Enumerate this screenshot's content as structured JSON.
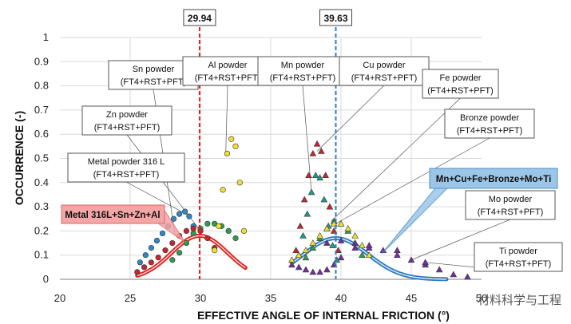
{
  "chart_data": {
    "type": "scatter",
    "xlabel": "EFFECTIVE ANGLE OF INTERNAL FRICTION (°)",
    "ylabel": "OCCURRENCE (-)",
    "xlim": [
      20,
      50
    ],
    "ylim": [
      0,
      1
    ],
    "x_ticks": [
      "20",
      "25",
      "30",
      "35",
      "40",
      "45",
      "50"
    ],
    "y_ticks": [
      "0",
      "0.1",
      "0.2",
      "0.3",
      "0.4",
      "0.5",
      "0.6",
      "0.7",
      "0.8",
      "0.9",
      "1"
    ],
    "grid": true,
    "reference_lines": [
      {
        "x": 29.94,
        "label": "29.94",
        "color": "#e0201b"
      },
      {
        "x": 39.63,
        "label": "39.63",
        "color": "#2d7cc1"
      }
    ],
    "series": [
      {
        "name": "Metal powder 316 L",
        "marker": "circle",
        "color": "#2f86c8",
        "x": [
          25.7,
          26.1,
          26.5,
          26.9,
          27.3,
          27.7,
          28.1,
          28.5,
          28.9,
          29.2,
          29.5
        ],
        "y": [
          0.07,
          0.1,
          0.13,
          0.16,
          0.19,
          0.22,
          0.25,
          0.27,
          0.28,
          0.26,
          0.22
        ]
      },
      {
        "name": "Zn powder",
        "marker": "circle",
        "color": "#2e9b4f",
        "x": [
          28.0,
          28.5,
          29.0,
          29.5,
          30.0,
          30.5,
          31.0,
          31.5,
          32.0,
          32.5
        ],
        "y": [
          0.08,
          0.11,
          0.15,
          0.19,
          0.21,
          0.23,
          0.23,
          0.22,
          0.2,
          0.17
        ]
      },
      {
        "name": "Sn powder",
        "marker": "circle",
        "color": "#c0282d",
        "x": [
          25.5,
          26.0,
          26.5,
          27.0,
          27.5,
          28.0,
          28.5,
          29.0,
          29.5,
          30.0,
          30.5,
          31.0
        ],
        "y": [
          0.03,
          0.05,
          0.07,
          0.09,
          0.12,
          0.15,
          0.18,
          0.2,
          0.21,
          0.2,
          0.17,
          0.13
        ]
      },
      {
        "name": "Al powder",
        "marker": "circle",
        "color": "#f2e030",
        "x": [
          31.0,
          31.3,
          31.6,
          31.9,
          32.2,
          32.5,
          32.8,
          33.1
        ],
        "y": [
          0.12,
          0.22,
          0.37,
          0.52,
          0.58,
          0.55,
          0.4,
          0.2
        ]
      },
      {
        "name": "Mn powder",
        "marker": "triangle",
        "color": "#1f9c88",
        "x": [
          37.0,
          37.3,
          37.6,
          37.9,
          38.2,
          38.5,
          38.8,
          39.1,
          39.4,
          39.7
        ],
        "y": [
          0.1,
          0.18,
          0.27,
          0.36,
          0.43,
          0.42,
          0.33,
          0.22,
          0.14,
          0.08
        ]
      },
      {
        "name": "Cu powder",
        "marker": "triangle",
        "color": "#c0282d",
        "x": [
          36.8,
          37.1,
          37.4,
          37.7,
          38.0,
          38.3,
          38.6,
          38.9,
          39.2,
          39.5,
          39.8
        ],
        "y": [
          0.12,
          0.22,
          0.33,
          0.43,
          0.52,
          0.56,
          0.53,
          0.43,
          0.3,
          0.2,
          0.12
        ]
      },
      {
        "name": "Fe powder",
        "marker": "triangle",
        "color": "#2e9b4f",
        "x": [
          37.5,
          38.0,
          38.5,
          39.0,
          39.5,
          40.0,
          40.5,
          41.0,
          41.5
        ],
        "y": [
          0.09,
          0.13,
          0.17,
          0.21,
          0.24,
          0.23,
          0.2,
          0.15,
          0.1
        ]
      },
      {
        "name": "Bronze powder",
        "marker": "triangle",
        "color": "#f2e030",
        "x": [
          36.5,
          37.0,
          37.5,
          38.0,
          38.5,
          39.0,
          39.5,
          40.0,
          40.5,
          41.0,
          41.5,
          42.0
        ],
        "y": [
          0.08,
          0.1,
          0.12,
          0.15,
          0.18,
          0.21,
          0.23,
          0.23,
          0.21,
          0.18,
          0.14,
          0.1
        ]
      },
      {
        "name": "Mo powder",
        "marker": "triangle",
        "color": "#7030a0",
        "x": [
          39.0,
          40.0,
          41.0,
          42.0,
          43.0,
          44.0,
          45.0,
          46.0,
          47.0
        ],
        "y": [
          0.15,
          0.16,
          0.15,
          0.13,
          0.12,
          0.1,
          0.08,
          0.06,
          0.04
        ]
      },
      {
        "name": "Ti powder",
        "marker": "triangle",
        "color": "#7030a0",
        "x": [
          36.5,
          37.0,
          37.5,
          38.0,
          38.5,
          39.0,
          39.5,
          40.0,
          41.0,
          42.0,
          44.0,
          46.0,
          48.0,
          49.0
        ],
        "y": [
          0.06,
          0.05,
          0.04,
          0.03,
          0.03,
          0.04,
          0.06,
          0.09,
          0.13,
          0.14,
          0.12,
          0.07,
          0.02,
          0.01
        ]
      }
    ],
    "fit_curves": [
      {
        "name": "Metal 316L+Sn+Zn+Al",
        "color": "#e0201b",
        "mean": 29.94,
        "sd": 2.0,
        "peak": 0.18,
        "x_from": 25.5,
        "x_to": 33.2
      },
      {
        "name": "Mn+Cu+Fe+Bronze+Mo+Ti",
        "color": "#2d7cc1",
        "mean": 39.63,
        "sd": 2.3,
        "peak": 0.17,
        "x_from": 36.5,
        "x_to": 47.5
      }
    ],
    "callouts": [
      {
        "text": [
          "Sn powder",
          "(FT4+RST+PFT)"
        ],
        "target_x": 28.2,
        "target_y": 0.18
      },
      {
        "text": [
          "Al powder",
          "(FT4+RST+PFT)"
        ],
        "target_x": 31.8,
        "target_y": 0.52
      },
      {
        "text": [
          "Zn powder",
          "(FT4+RST+PFT)"
        ],
        "target_x": 30.0,
        "target_y": 0.2
      },
      {
        "text": [
          "Metal powder 316 L",
          "(FT4+RST+PFT)"
        ],
        "target_x": 29.3,
        "target_y": 0.26
      },
      {
        "text": [
          "Mn powder",
          "(FT4+RST+PFT)"
        ],
        "target_x": 37.9,
        "target_y": 0.36
      },
      {
        "text": [
          "Cu powder",
          "(FT4+RST+PFT)"
        ],
        "target_x": 38.3,
        "target_y": 0.53
      },
      {
        "text": [
          "Fe powder",
          "(FT4+RST+PFT)"
        ],
        "target_x": 39.3,
        "target_y": 0.24
      },
      {
        "text": [
          "Bronze powder",
          "(FT4+RST+PFT)"
        ],
        "target_x": 39.0,
        "target_y": 0.21
      },
      {
        "text": [
          "Mo powder",
          "(FT4+RST+PFT)"
        ],
        "target_x": 45.0,
        "target_y": 0.08
      },
      {
        "text": [
          "Ti powder",
          "(FT4+RST+PFT)"
        ],
        "target_x": 46.0,
        "target_y": 0.07
      }
    ],
    "group_labels": [
      {
        "text": "Metal 316L+Sn+Zn+Al",
        "color": "#f4a6a6"
      },
      {
        "text": "Mn+Cu+Fe+Bronze+Mo+Ti",
        "color": "#9cc6e8"
      }
    ],
    "watermark": "材料科学与工程"
  }
}
